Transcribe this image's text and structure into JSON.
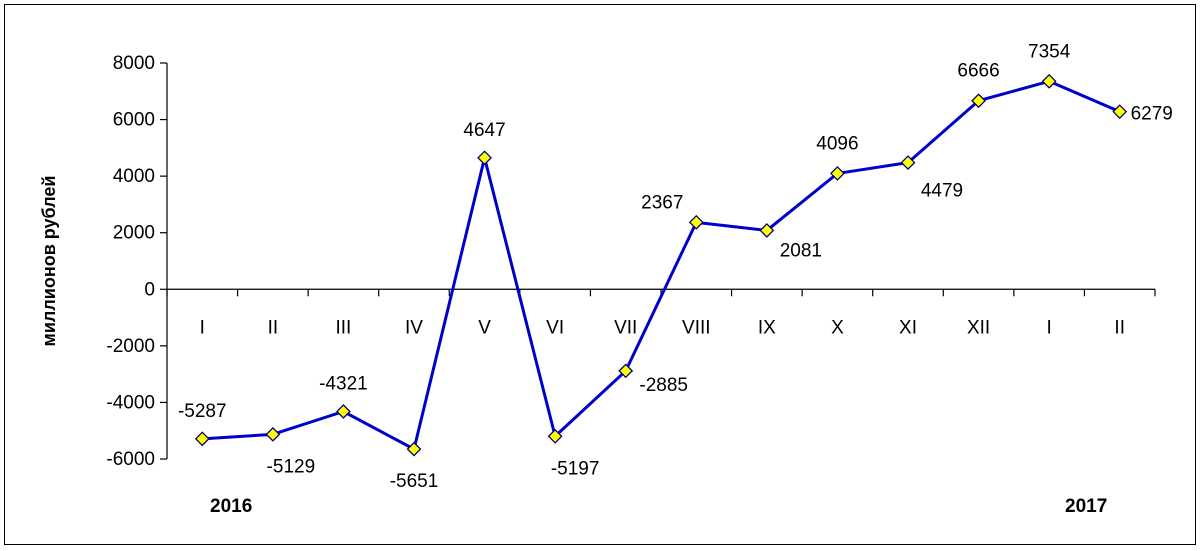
{
  "chart_data": {
    "type": "line",
    "ylabel": "миллионов рублей",
    "ylim": [
      -6000,
      8000
    ],
    "yticks": [
      "8000",
      "6000",
      "4000",
      "2000",
      "0",
      "-2000",
      "-4000",
      "-6000"
    ],
    "categories": [
      "I",
      "II",
      "III",
      "IV",
      "V",
      "VI",
      "VII",
      "VIII",
      "IX",
      "X",
      "XI",
      "XII",
      "I",
      "II"
    ],
    "values": [
      -5287,
      -5129,
      -4321,
      -5651,
      4647,
      -5197,
      -2885,
      2367,
      2081,
      4096,
      4479,
      6666,
      7354,
      6279
    ],
    "data_labels": [
      "-5287",
      "-5129",
      "-4321",
      "-5651",
      "4647",
      "-5197",
      "-2885",
      "2367",
      "2081",
      "4096",
      "4479",
      "6666",
      "7354",
      "6279"
    ],
    "year_labels": [
      "2016",
      "2017"
    ],
    "grid": false,
    "legend": "none",
    "line_color": "#0000CC",
    "marker_fill": "#FFFF00",
    "marker_stroke": "#000080"
  }
}
